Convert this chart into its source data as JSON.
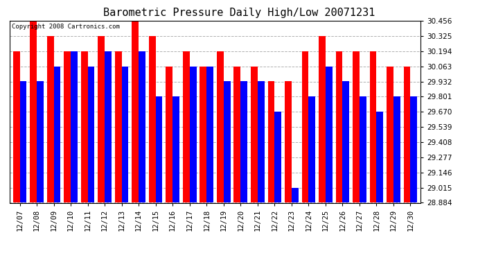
{
  "title": "Barometric Pressure Daily High/Low 20071231",
  "copyright": "Copyright 2008 Cartronics.com",
  "dates": [
    "12/07",
    "12/08",
    "12/09",
    "12/10",
    "12/11",
    "12/12",
    "12/13",
    "12/14",
    "12/15",
    "12/16",
    "12/17",
    "12/18",
    "12/19",
    "12/20",
    "12/21",
    "12/22",
    "12/23",
    "12/24",
    "12/25",
    "12/26",
    "12/27",
    "12/28",
    "12/29",
    "12/30"
  ],
  "highs": [
    30.194,
    30.456,
    30.325,
    30.194,
    30.194,
    30.325,
    30.194,
    30.456,
    30.325,
    30.063,
    30.194,
    30.063,
    30.194,
    30.063,
    30.063,
    29.932,
    29.932,
    30.194,
    30.325,
    30.194,
    30.194,
    30.194,
    30.063,
    30.063
  ],
  "lows": [
    29.932,
    29.932,
    30.063,
    30.194,
    30.063,
    30.194,
    30.063,
    30.194,
    29.801,
    29.801,
    30.063,
    30.063,
    29.932,
    29.932,
    29.932,
    29.67,
    29.015,
    29.801,
    30.063,
    29.932,
    29.801,
    29.67,
    29.801,
    29.801
  ],
  "ylim_min": 28.884,
  "ylim_max": 30.456,
  "yticks": [
    28.884,
    29.015,
    29.146,
    29.277,
    29.408,
    29.539,
    29.67,
    29.801,
    29.932,
    30.063,
    30.194,
    30.325,
    30.456
  ],
  "high_color": "#ff0000",
  "low_color": "#0000ff",
  "bg_color": "#ffffff",
  "grid_color": "#b0b0b0",
  "title_fontsize": 11,
  "tick_fontsize": 7.5,
  "copyright_fontsize": 6.5
}
